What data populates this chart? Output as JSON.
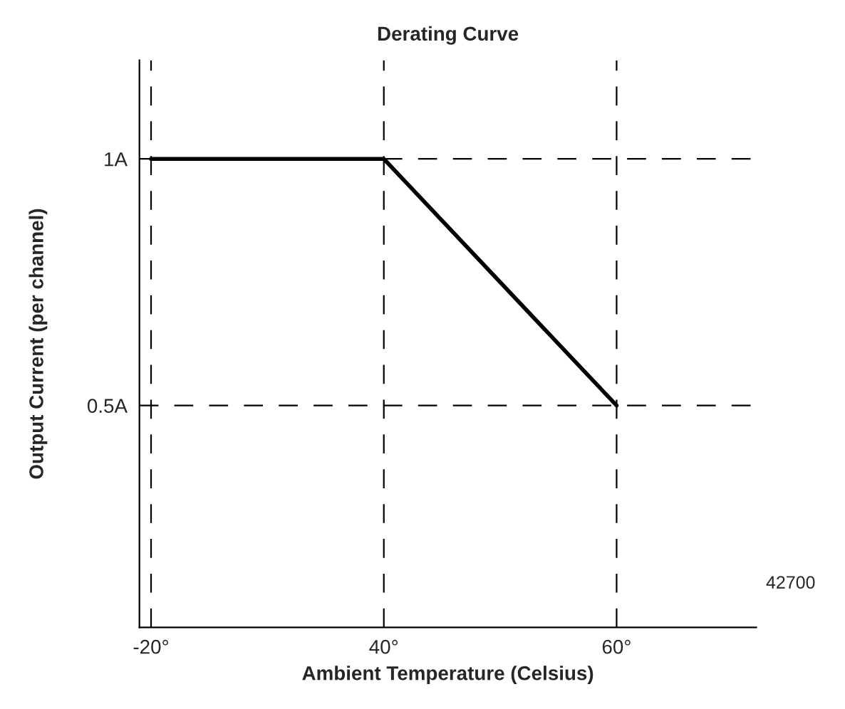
{
  "chart_data": {
    "type": "line",
    "title": "Derating Curve",
    "xlabel": "Ambient Temperature (Celsius)",
    "ylabel": "Output Current (per channel)",
    "categories": [
      "-20°",
      "40°",
      "60°"
    ],
    "series": [
      {
        "color": "#000000",
        "values": [
          1,
          1,
          0.5
        ]
      }
    ],
    "ylim": [
      0.05,
      1.2
    ],
    "yticks": [
      {
        "value": 0.5,
        "label": "0.5A"
      },
      {
        "value": 1,
        "label": "1A"
      }
    ],
    "grid": true,
    "marker": "none",
    "line_style": "solid",
    "annotations": [
      "42700"
    ]
  }
}
